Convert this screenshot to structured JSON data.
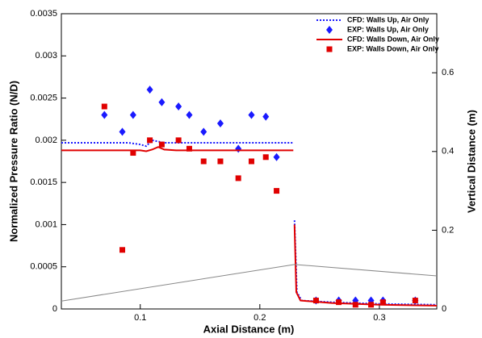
{
  "chart_data": {
    "type": "line",
    "xlabel": "Axial Distance (m)",
    "ylabel": "Normalized Pressure Ratio (N/D)",
    "y2label": "Vertical Distance (m)",
    "xlim": [
      0.034,
      0.348
    ],
    "xticks": [
      0.1,
      0.2,
      0.3
    ],
    "ylim": [
      0,
      0.0035
    ],
    "yticks": [
      0,
      0.0005,
      0.001,
      0.0015,
      0.002,
      0.0025,
      0.003,
      0.0035
    ],
    "y2lim": [
      0,
      0.75
    ],
    "y2ticks": [
      0,
      0.2,
      0.4,
      0.6
    ],
    "grid": false,
    "legend": "top-right",
    "series": [
      {
        "name": "CFD: Walls Up, Air Only",
        "color": "#1a1aff",
        "mode": "line",
        "dash": "dotted",
        "x": [
          0.034,
          0.09,
          0.1,
          0.105,
          0.11,
          0.12,
          0.15,
          0.2,
          0.228,
          null,
          0.229,
          0.231,
          0.235,
          0.26,
          0.3,
          0.348
        ],
        "values": [
          0.00197,
          0.00197,
          0.00195,
          0.00193,
          0.002,
          0.00197,
          0.00197,
          0.00197,
          0.00197,
          null,
          0.00105,
          0.0002,
          0.0001,
          8e-05,
          6e-05,
          5e-05
        ]
      },
      {
        "name": "EXP: Walls Up, Air Only",
        "color": "#1a1aff",
        "mode": "markers",
        "marker": "diamond",
        "x": [
          0.07,
          0.085,
          0.094,
          0.108,
          0.118,
          0.132,
          0.141,
          0.153,
          0.167,
          0.182,
          0.193,
          0.205,
          0.214,
          0.247,
          0.266,
          0.28,
          0.293,
          0.303,
          0.33
        ],
        "values": [
          0.0023,
          0.0021,
          0.0023,
          0.0026,
          0.00245,
          0.0024,
          0.0023,
          0.0021,
          0.0022,
          0.0019,
          0.0023,
          0.00228,
          0.0018,
          0.0001,
          0.0001,
          0.0001,
          0.0001,
          0.0001,
          0.0001
        ]
      },
      {
        "name": "CFD: Walls Down, Air Only",
        "color": "#e00000",
        "mode": "line",
        "dash": "solid",
        "x": [
          0.034,
          0.1,
          0.105,
          0.11,
          0.115,
          0.12,
          0.13,
          0.15,
          0.2,
          0.228,
          null,
          0.229,
          0.2305,
          0.234,
          0.26,
          0.3,
          0.348
        ],
        "values": [
          0.00188,
          0.00188,
          0.00187,
          0.00189,
          0.00192,
          0.00189,
          0.00188,
          0.00188,
          0.00188,
          0.00188,
          null,
          0.001,
          0.0002,
          0.0001,
          7e-05,
          5e-05,
          4e-05
        ]
      },
      {
        "name": "EXP: Walls Down, Air Only",
        "color": "#e00000",
        "mode": "markers",
        "marker": "square",
        "x": [
          0.07,
          0.085,
          0.094,
          0.108,
          0.118,
          0.132,
          0.141,
          0.153,
          0.167,
          0.182,
          0.193,
          0.205,
          0.214,
          0.247,
          0.266,
          0.28,
          0.293,
          0.303,
          0.33
        ],
        "values": [
          0.0024,
          0.0007,
          0.00185,
          0.002,
          0.00195,
          0.002,
          0.0019,
          0.00175,
          0.00175,
          0.00155,
          0.00175,
          0.0018,
          0.0014,
          0.0001,
          8e-05,
          5e-05,
          5e-05,
          8e-05,
          0.0001
        ]
      },
      {
        "color": "#888888",
        "mode": "line",
        "dash": "solid",
        "axis": "y2",
        "x": [
          0.034,
          0.229,
          0.348
        ],
        "values": [
          0.02,
          0.113,
          0.084
        ]
      }
    ]
  }
}
